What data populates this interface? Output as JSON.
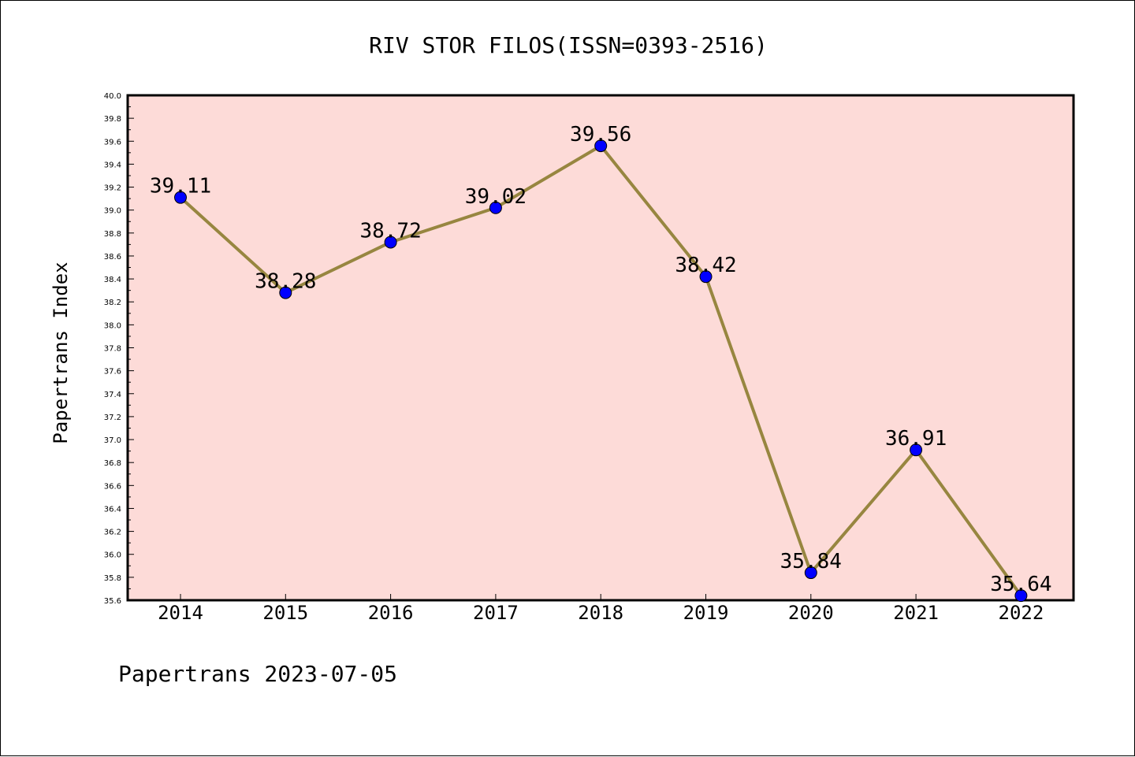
{
  "chart_data": {
    "type": "line",
    "title": "RIV STOR FILOS(ISSN=0393-2516)",
    "ylabel": "Papertrans Index",
    "xlabel": "",
    "categories": [
      "2014",
      "2015",
      "2016",
      "2017",
      "2018",
      "2019",
      "2020",
      "2021",
      "2022"
    ],
    "values": [
      39.11,
      38.28,
      38.72,
      39.02,
      39.56,
      38.42,
      35.84,
      36.91,
      35.64
    ],
    "data_labels": [
      "39.11",
      "38.28",
      "38.72",
      "39.02",
      "39.56",
      "38.42",
      "35.84",
      "36.91",
      "35.64"
    ],
    "ylim": [
      35.6,
      40.0
    ],
    "y_ticks": [
      "35.6",
      "35.8",
      "36.0",
      "36.2",
      "36.4",
      "36.6",
      "36.8",
      "37.0",
      "37.2",
      "37.4",
      "37.6",
      "37.8",
      "38.0",
      "38.2",
      "38.4",
      "38.6",
      "38.8",
      "39.0",
      "39.2",
      "39.4",
      "39.6",
      "39.8",
      "40.0"
    ],
    "grid": false,
    "legend": "none",
    "colors": {
      "plot_background": "#fddbd8",
      "line": "#978640",
      "marker": "#0000ff"
    }
  },
  "footer": {
    "text": "Papertrans 2023-07-05"
  }
}
